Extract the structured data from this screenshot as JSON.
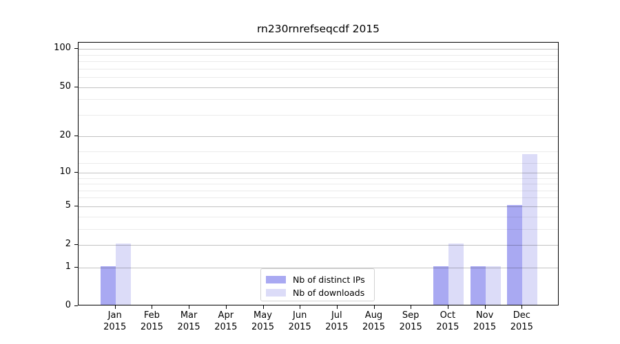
{
  "title": "rn230rnrefseqcdf 2015",
  "chart_data": {
    "type": "bar",
    "title": "rn230rnrefseqcdf 2015",
    "x_categories": [
      "Jan",
      "Feb",
      "Mar",
      "Apr",
      "May",
      "Jun",
      "Jul",
      "Aug",
      "Sep",
      "Oct",
      "Nov",
      "Dec"
    ],
    "x_year": "2015",
    "series": [
      {
        "name": "Nb of distinct IPs",
        "color": "#a9a9f2",
        "values": [
          1,
          0,
          0,
          0,
          0,
          0,
          0,
          0,
          0,
          1,
          1,
          5
        ]
      },
      {
        "name": "Nb of downloads",
        "color": "#dcdcf8",
        "values": [
          2,
          0,
          0,
          0,
          0,
          0,
          0,
          0,
          0,
          2,
          1,
          14
        ]
      }
    ],
    "y_scale": "log1p",
    "y_ticks": [
      0,
      1,
      2,
      5,
      10,
      20,
      50,
      100
    ],
    "y_minor_gridlines": [
      3,
      4,
      6,
      7,
      8,
      9,
      12,
      15,
      30,
      40,
      60,
      70,
      80,
      90
    ],
    "ylim": [
      0,
      112
    ],
    "grid": "horizontal",
    "legend_position": "lower center",
    "axis_color": "#000000",
    "major_grid_color": "rgba(0,0,0,0.24)",
    "minor_grid_color": "rgba(0,0,0,0.08)"
  }
}
